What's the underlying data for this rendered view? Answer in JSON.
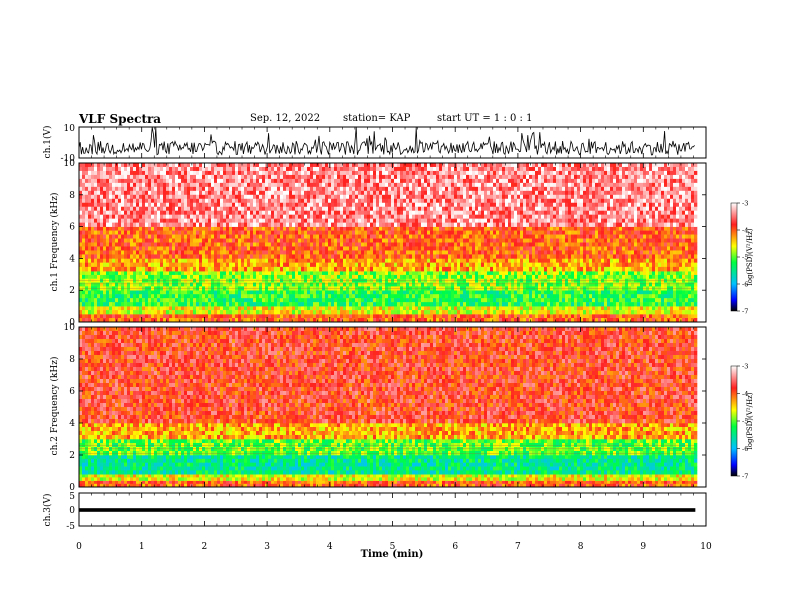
{
  "header": {
    "title": "VLF Spectra",
    "date": "Sep. 12, 2022",
    "station": "station= KAP",
    "start_ut": "start UT = 1 : 0 : 1"
  },
  "chart_data": [
    {
      "type": "line",
      "panel": "ch1-waveform",
      "ylabel": "ch.1(V)",
      "ylim": [
        -10,
        10
      ],
      "y_ticks": [
        "10",
        "-10"
      ],
      "color": "#000000"
    },
    {
      "type": "heatmap",
      "panel": "ch1-spectrogram",
      "ylabel": "ch.1 Frequency (kHz)",
      "ylim": [
        0,
        10
      ],
      "y_ticks": [
        "0",
        "2",
        "4",
        "6",
        "8",
        "10"
      ],
      "bands_khz": [
        {
          "from": 0,
          "to": 0.5,
          "log_psd": -4.0
        },
        {
          "from": 0.5,
          "to": 1.0,
          "log_psd": -4.6
        },
        {
          "from": 1.0,
          "to": 2.0,
          "log_psd": -5.2
        },
        {
          "from": 2.0,
          "to": 3.2,
          "log_psd": -4.9
        },
        {
          "from": 3.2,
          "to": 4.0,
          "log_psd": -4.3
        },
        {
          "from": 4.0,
          "to": 6.0,
          "log_psd": -4.0
        },
        {
          "from": 6.0,
          "to": 10.0,
          "log_psd": -3.4
        }
      ],
      "colorbar": {
        "label": "log(PSD)(V²/Hz)",
        "ticks": [
          "-3",
          "-4",
          "-5",
          "-6",
          "-7"
        ],
        "range": [
          -7,
          -3
        ]
      }
    },
    {
      "type": "heatmap",
      "panel": "ch2-spectrogram",
      "ylabel": "ch.2 Frequency (kHz)",
      "ylim": [
        0,
        10
      ],
      "y_ticks": [
        "0",
        "2",
        "4",
        "6",
        "8",
        "10"
      ],
      "bands_khz": [
        {
          "from": 0,
          "to": 0.4,
          "log_psd": -4.0
        },
        {
          "from": 0.4,
          "to": 0.8,
          "log_psd": -4.6
        },
        {
          "from": 0.8,
          "to": 2.0,
          "log_psd": -5.5
        },
        {
          "from": 2.0,
          "to": 3.0,
          "log_psd": -5.0
        },
        {
          "from": 3.0,
          "to": 4.0,
          "log_psd": -4.3
        },
        {
          "from": 4.0,
          "to": 10.0,
          "log_psd": -3.8
        }
      ],
      "colorbar": {
        "label": "log(PSD)(V²/Hz)",
        "ticks": [
          "-3",
          "-4",
          "-5",
          "-6",
          "-7"
        ],
        "range": [
          -7,
          -3
        ]
      }
    },
    {
      "type": "line",
      "panel": "ch3-waveform",
      "ylabel": "ch.3(V)",
      "ylim": [
        -5,
        5
      ],
      "y_ticks": [
        "5",
        "0",
        "-5"
      ],
      "value_band": [
        -0.7,
        0.4
      ],
      "color": "#000000"
    }
  ],
  "x_axis": {
    "label": "Time (min)",
    "range": [
      0,
      10
    ],
    "data_end": 9.83,
    "ticks": [
      "0",
      "1",
      "2",
      "3",
      "4",
      "5",
      "6",
      "7",
      "8",
      "9",
      "10"
    ]
  }
}
